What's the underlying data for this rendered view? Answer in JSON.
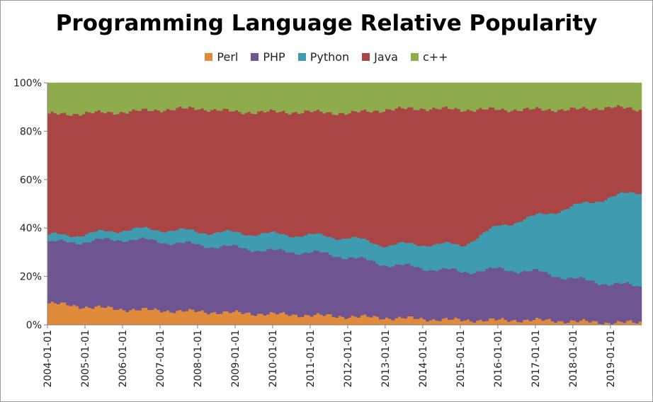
{
  "chart_data": {
    "type": "area",
    "title": "Programming Language Relative Popularity",
    "stacking": "percent",
    "x_range": [
      "2004-01",
      "2019-10"
    ],
    "ylim": [
      0,
      100
    ],
    "y_ticks": [
      "0%",
      "20%",
      "40%",
      "60%",
      "80%",
      "100%"
    ],
    "x_ticks": [
      "2004-01-01",
      "2005-01-01",
      "2006-01-01",
      "2007-01-01",
      "2008-01-01",
      "2009-01-01",
      "2010-01-01",
      "2011-01-01",
      "2012-01-01",
      "2013-01-01",
      "2014-01-01",
      "2015-01-01",
      "2016-01-01",
      "2017-01-01",
      "2018-01-01",
      "2019-01-01"
    ],
    "legend": "top",
    "grid": false,
    "series": [
      {
        "name": "Perl",
        "color": "#e08a3c"
      },
      {
        "name": "PHP",
        "color": "#6e5592"
      },
      {
        "name": "Python",
        "color": "#3f9bb0"
      },
      {
        "name": "Java",
        "color": "#a94545"
      },
      {
        "name": "c++",
        "color": "#8eac4c"
      }
    ],
    "anchors": [
      {
        "x": "2004-01",
        "perl": 9,
        "php": 25,
        "python": 3,
        "java": 50,
        "cpp": 13
      },
      {
        "x": "2005-01",
        "perl": 7.5,
        "php": 27,
        "python": 3,
        "java": 50,
        "cpp": 12.5
      },
      {
        "x": "2006-01",
        "perl": 6.5,
        "php": 29,
        "python": 4,
        "java": 48.5,
        "cpp": 12
      },
      {
        "x": "2007-01",
        "perl": 6,
        "php": 28.5,
        "python": 5,
        "java": 49.5,
        "cpp": 11
      },
      {
        "x": "2008-01",
        "perl": 5.5,
        "php": 27.5,
        "python": 5.5,
        "java": 51,
        "cpp": 10.5
      },
      {
        "x": "2009-01",
        "perl": 5,
        "php": 27,
        "python": 6,
        "java": 50,
        "cpp": 12
      },
      {
        "x": "2010-01",
        "perl": 4.5,
        "php": 26,
        "python": 7,
        "java": 50.5,
        "cpp": 12
      },
      {
        "x": "2011-01",
        "perl": 4,
        "php": 26,
        "python": 7,
        "java": 51,
        "cpp": 12
      },
      {
        "x": "2012-01",
        "perl": 3.5,
        "php": 24.5,
        "python": 8,
        "java": 51.5,
        "cpp": 12.5
      },
      {
        "x": "2013-01",
        "perl": 3,
        "php": 22,
        "python": 8,
        "java": 56,
        "cpp": 11
      },
      {
        "x": "2014-01",
        "perl": 2.5,
        "php": 21,
        "python": 10,
        "java": 56,
        "cpp": 10.5
      },
      {
        "x": "2015-01",
        "perl": 2,
        "php": 20,
        "python": 11,
        "java": 56,
        "cpp": 11
      },
      {
        "x": "2016-01",
        "perl": 2,
        "php": 21,
        "python": 18,
        "java": 48,
        "cpp": 11
      },
      {
        "x": "2017-01",
        "perl": 2,
        "php": 20,
        "python": 23,
        "java": 44,
        "cpp": 11
      },
      {
        "x": "2018-01",
        "perl": 1.5,
        "php": 17.5,
        "python": 30,
        "java": 40,
        "cpp": 11
      },
      {
        "x": "2019-01",
        "perl": 1,
        "php": 16,
        "python": 36,
        "java": 37,
        "cpp": 10
      },
      {
        "x": "2019-10",
        "perl": 1,
        "php": 15,
        "python": 39,
        "java": 34,
        "cpp": 11
      }
    ]
  }
}
